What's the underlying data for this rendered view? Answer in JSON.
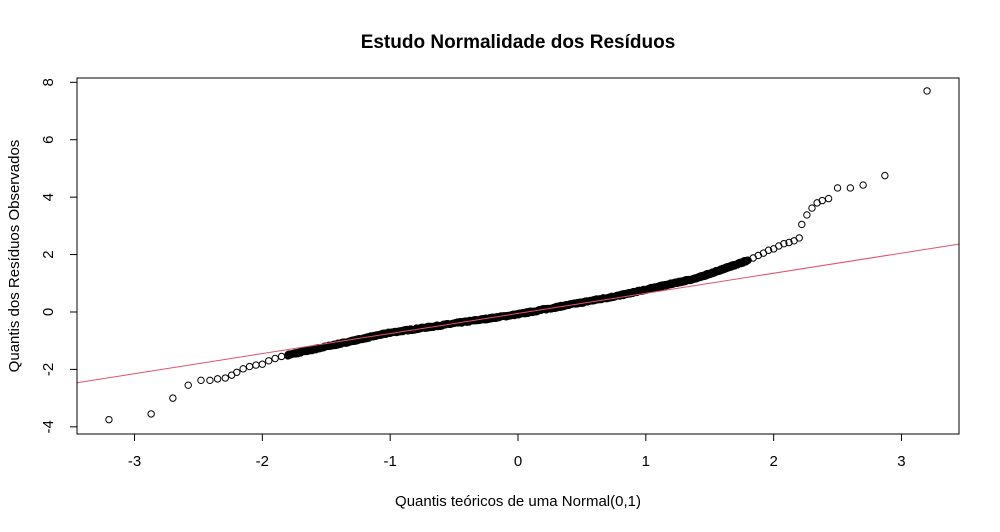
{
  "chart_data": {
    "type": "scatter",
    "title": "Estudo Normalidade dos Resíduos",
    "xlabel": "Quantis teóricos de uma Normal(0,1)",
    "ylabel": "Quantis dos Resíduos Observados",
    "xlim": [
      -3.45,
      3.45
    ],
    "ylim": [
      -4.25,
      8.15
    ],
    "x_ticks": [
      -3,
      -2,
      -1,
      0,
      1,
      2,
      3
    ],
    "y_ticks": [
      -4,
      -2,
      0,
      2,
      4,
      6,
      8
    ],
    "reference_line": {
      "intercept": -0.05,
      "slope": 0.7,
      "color": "#DF536B"
    },
    "marker_color": "#000000",
    "points_tail_low": [
      [
        -3.2,
        -3.75
      ],
      [
        -2.87,
        -3.55
      ],
      [
        -2.7,
        -3.0
      ],
      [
        -2.58,
        -2.55
      ],
      [
        -2.48,
        -2.38
      ],
      [
        -2.41,
        -2.38
      ],
      [
        -2.35,
        -2.33
      ],
      [
        -2.29,
        -2.3
      ],
      [
        -2.24,
        -2.2
      ],
      [
        -2.2,
        -2.1
      ],
      [
        -2.15,
        -1.98
      ],
      [
        -2.1,
        -1.9
      ],
      [
        -2.05,
        -1.85
      ],
      [
        -2.0,
        -1.82
      ],
      [
        -1.95,
        -1.7
      ],
      [
        -1.9,
        -1.62
      ],
      [
        -1.85,
        -1.55
      ],
      [
        -1.8,
        -1.5
      ]
    ],
    "points_tail_high": [
      [
        1.8,
        1.8
      ],
      [
        1.84,
        1.88
      ],
      [
        1.88,
        1.97
      ],
      [
        1.92,
        2.05
      ],
      [
        1.96,
        2.15
      ],
      [
        2.0,
        2.2
      ],
      [
        2.04,
        2.3
      ],
      [
        2.08,
        2.38
      ],
      [
        2.12,
        2.42
      ],
      [
        2.16,
        2.48
      ],
      [
        2.2,
        2.58
      ],
      [
        2.22,
        3.05
      ],
      [
        2.26,
        3.38
      ],
      [
        2.3,
        3.62
      ],
      [
        2.34,
        3.8
      ],
      [
        2.38,
        3.88
      ],
      [
        2.43,
        3.95
      ],
      [
        2.5,
        4.32
      ],
      [
        2.6,
        4.32
      ],
      [
        2.7,
        4.42
      ],
      [
        2.87,
        4.75
      ],
      [
        3.2,
        7.7
      ]
    ],
    "body_segments": [
      {
        "from": [
          -1.8,
          -1.5
        ],
        "to": [
          -1.0,
          -0.72
        ]
      },
      {
        "from": [
          -1.0,
          -0.72
        ],
        "to": [
          0.0,
          -0.08
        ]
      },
      {
        "from": [
          0.0,
          -0.08
        ],
        "to": [
          0.8,
          0.58
        ]
      },
      {
        "from": [
          0.8,
          0.58
        ],
        "to": [
          1.4,
          1.18
        ]
      },
      {
        "from": [
          1.4,
          1.18
        ],
        "to": [
          1.8,
          1.8
        ]
      }
    ],
    "body_point_count": 900
  }
}
